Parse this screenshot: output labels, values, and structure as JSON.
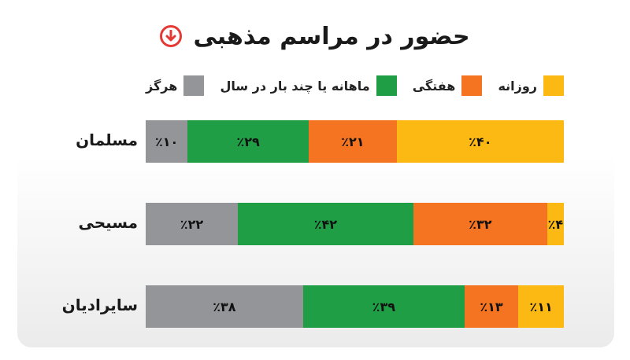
{
  "chart_data": {
    "type": "bar",
    "orientation": "horizontal-stacked-100",
    "direction": "rtl",
    "title": "حضور در مراسم مذهبی",
    "legend": [
      "روزانه",
      "هفتگی",
      "ماهانه یا چند بار در سال",
      "هرگز"
    ],
    "colors": [
      "#fdb913",
      "#f47421",
      "#1f9e46",
      "#939598"
    ],
    "categories": [
      "مسلمان",
      "مسیحی",
      "سایرادیان"
    ],
    "series": [
      {
        "name": "روزانه",
        "values": [
          40,
          4,
          11
        ],
        "labels": [
          "٪۴۰",
          "٪۴",
          "٪۱۱"
        ]
      },
      {
        "name": "هفتگی",
        "values": [
          21,
          32,
          13
        ],
        "labels": [
          "٪۲۱",
          "٪۳۲",
          "٪۱۳"
        ]
      },
      {
        "name": "ماهانه یا چند بار در سال",
        "values": [
          29,
          42,
          39
        ],
        "labels": [
          "٪۲۹",
          "٪۴۲",
          "٪۳۹"
        ]
      },
      {
        "name": "هرگز",
        "values": [
          10,
          22,
          38
        ],
        "labels": [
          "٪۱۰",
          "٪۲۲",
          "٪۳۸"
        ]
      }
    ],
    "xlim": [
      0,
      100
    ],
    "legend_position": "top"
  },
  "icons": {
    "title_icon": "arrow-down-circle-icon"
  }
}
